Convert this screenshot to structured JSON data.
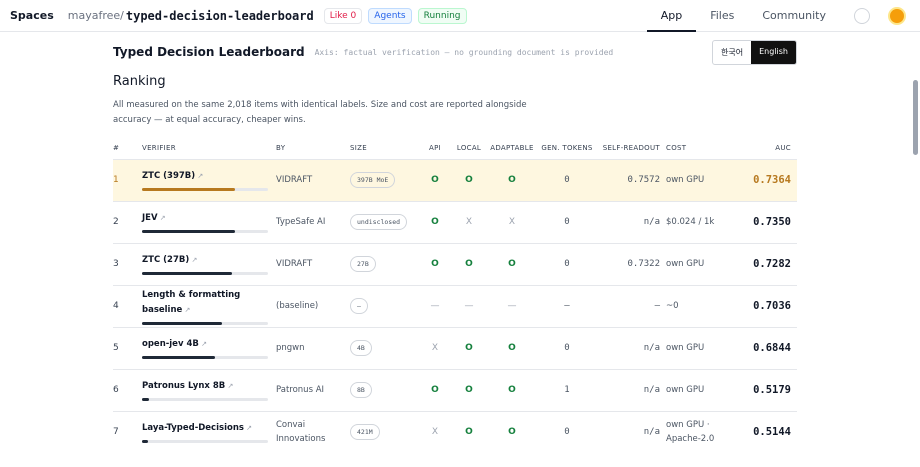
{
  "header": {
    "brand": "Spaces",
    "owner": "mayafree",
    "repo": "typed-decision-leaderboard",
    "like": "Like",
    "likes": "0",
    "agents": "Agents",
    "status": "Running",
    "nav": [
      "App",
      "Files",
      "Community"
    ]
  },
  "subheader": {
    "title": "Typed Decision Leaderboard",
    "axis_note": "Axis: factual verification — no grounding document is provided",
    "languages": [
      "한국어",
      "English"
    ]
  },
  "section": {
    "heading": "Ranking",
    "description": "All measured on the same 2,018 items with identical labels. Size and cost are reported alongside accuracy — at equal accuracy, cheaper wins."
  },
  "table": {
    "columns": [
      "#",
      "VERIFIER",
      "BY",
      "SIZE",
      "API",
      "LOCAL",
      "ADAPTABLE",
      "GEN. TOKENS",
      "SELF-READOUT",
      "COST",
      "AUC"
    ],
    "rows": [
      {
        "rank": "1",
        "verifier": "ZTC (397B)",
        "by": "VIDRAFT",
        "size": "397B MoE",
        "api": "O",
        "local": "O",
        "adaptable": "O",
        "gen_tokens": "0",
        "self_readout": "0.7572",
        "cost": "own GPU",
        "auc": "0.7364"
      },
      {
        "rank": "2",
        "verifier": "JEV",
        "by": "TypeSafe AI",
        "size": "undisclosed",
        "api": "O",
        "local": "X",
        "adaptable": "X",
        "gen_tokens": "0",
        "self_readout": "n/a",
        "cost": "$0.024 / 1k",
        "auc": "0.7350"
      },
      {
        "rank": "3",
        "verifier": "ZTC (27B)",
        "by": "VIDRAFT",
        "size": "27B",
        "api": "O",
        "local": "O",
        "adaptable": "O",
        "gen_tokens": "0",
        "self_readout": "0.7322",
        "cost": "own GPU",
        "auc": "0.7282"
      },
      {
        "rank": "4",
        "verifier": "Length & formatting baseline",
        "by": "(baseline)",
        "size": "—",
        "api": "—",
        "local": "—",
        "adaptable": "—",
        "gen_tokens": "—",
        "self_readout": "—",
        "cost": "~0",
        "auc": "0.7036"
      },
      {
        "rank": "5",
        "verifier": "open-jev 4B",
        "by": "pngwn",
        "size": "4B",
        "api": "X",
        "local": "O",
        "adaptable": "O",
        "gen_tokens": "0",
        "self_readout": "n/a",
        "cost": "own GPU",
        "auc": "0.6844"
      },
      {
        "rank": "6",
        "verifier": "Patronus Lynx 8B",
        "by": "Patronus AI",
        "size": "8B",
        "api": "O",
        "local": "O",
        "adaptable": "O",
        "gen_tokens": "1",
        "self_readout": "n/a",
        "cost": "own GPU",
        "auc": "0.5179"
      },
      {
        "rank": "7",
        "verifier": "Laya-Typed-Decisions",
        "by": "Convai Innovations",
        "size": "421M",
        "api": "X",
        "local": "O",
        "adaptable": "O",
        "gen_tokens": "0",
        "self_readout": "n/a",
        "cost": "own GPU · Apache-2.0",
        "auc": "0.5144"
      }
    ]
  }
}
